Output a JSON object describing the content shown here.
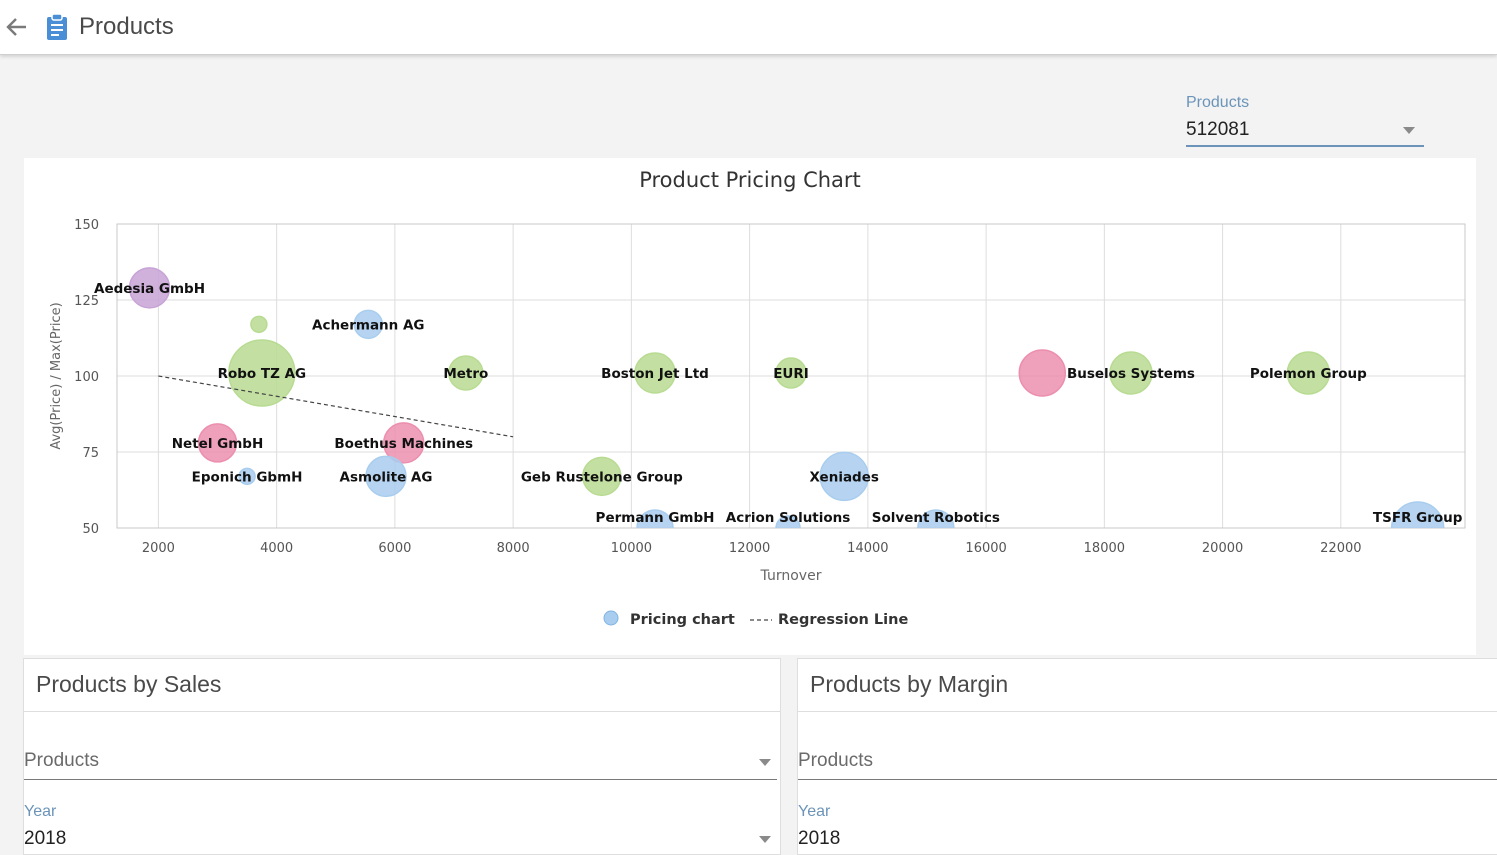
{
  "header": {
    "title": "Products",
    "back_icon": "arrow-left-icon",
    "title_icon": "clipboard-icon",
    "icon_color": "#4a8fd6"
  },
  "product_filter": {
    "label": "Products",
    "value": "512081"
  },
  "chart_data": {
    "type": "scatter",
    "title": "Product Pricing Chart",
    "xlabel": "Turnover",
    "ylabel": "Avg(Price) / Max(Price)",
    "xlim": [
      1300,
      24100
    ],
    "ylim": [
      50,
      150
    ],
    "xticks": [
      2000,
      4000,
      6000,
      8000,
      10000,
      12000,
      14000,
      16000,
      18000,
      20000,
      22000
    ],
    "yticks": [
      50,
      75,
      100,
      125,
      150
    ],
    "grid": true,
    "legend_position": "bottom",
    "legend": [
      "Pricing chart",
      "Regression Line"
    ],
    "colors": {
      "green": "#b8db92",
      "blue": "#a9cdee",
      "pink": "#ec8fae",
      "purple": "#c8a3d6"
    },
    "points": [
      {
        "label": "Aedesia GmbH",
        "x": 1850,
        "y": 129,
        "size": 20,
        "color": "purple"
      },
      {
        "label": "",
        "x": 3700,
        "y": 117,
        "size": 8,
        "color": "green"
      },
      {
        "label": "Achermann AG",
        "x": 5550,
        "y": 117,
        "size": 14,
        "color": "blue"
      },
      {
        "label": "Robo TZ AG",
        "x": 3750,
        "y": 101,
        "size": 33,
        "color": "green"
      },
      {
        "label": "Metro",
        "x": 7200,
        "y": 101,
        "size": 17,
        "color": "green"
      },
      {
        "label": "Boston Jet Ltd",
        "x": 10400,
        "y": 101,
        "size": 20,
        "color": "green"
      },
      {
        "label": "EURI",
        "x": 12700,
        "y": 101,
        "size": 15,
        "color": "green"
      },
      {
        "label": "",
        "x": 16950,
        "y": 101,
        "size": 23,
        "color": "pink"
      },
      {
        "label": "Buselos Systems",
        "x": 18450,
        "y": 101,
        "size": 21,
        "color": "green"
      },
      {
        "label": "Polemon Group",
        "x": 21450,
        "y": 101,
        "size": 21,
        "color": "green"
      },
      {
        "label": "Netel GmbH",
        "x": 3000,
        "y": 78,
        "size": 19,
        "color": "pink"
      },
      {
        "label": "Boethus Machines",
        "x": 6150,
        "y": 78,
        "size": 20,
        "color": "pink"
      },
      {
        "label": "Eponich GbmH",
        "x": 3500,
        "y": 67,
        "size": 8,
        "color": "blue"
      },
      {
        "label": "Asmolite AG",
        "x": 5850,
        "y": 67,
        "size": 20,
        "color": "blue"
      },
      {
        "label": "Geb Rustelone Group",
        "x": 9500,
        "y": 67,
        "size": 19,
        "color": "green"
      },
      {
        "label": "Xeniades",
        "x": 13600,
        "y": 67,
        "size": 24,
        "color": "blue"
      },
      {
        "label": "Permann GmbH",
        "x": 10400,
        "y": 50,
        "size": 18,
        "color": "blue"
      },
      {
        "label": "Acrion Solutions",
        "x": 12650,
        "y": 50,
        "size": 12,
        "color": "blue"
      },
      {
        "label": "Solvent Robotics",
        "x": 15150,
        "y": 50,
        "size": 18,
        "color": "blue"
      },
      {
        "label": "TSFR Group",
        "x": 23300,
        "y": 50,
        "size": 26,
        "color": "blue"
      }
    ],
    "regression": {
      "x": [
        2000,
        8000
      ],
      "y": [
        100,
        80
      ]
    }
  },
  "sales_panel": {
    "title": "Products by Sales",
    "products_placeholder": "Products",
    "year_label": "Year",
    "year_value": "2018"
  },
  "margin_panel": {
    "title": "Products by Margin",
    "products_placeholder": "Products",
    "year_label": "Year",
    "year_value": "2018"
  }
}
